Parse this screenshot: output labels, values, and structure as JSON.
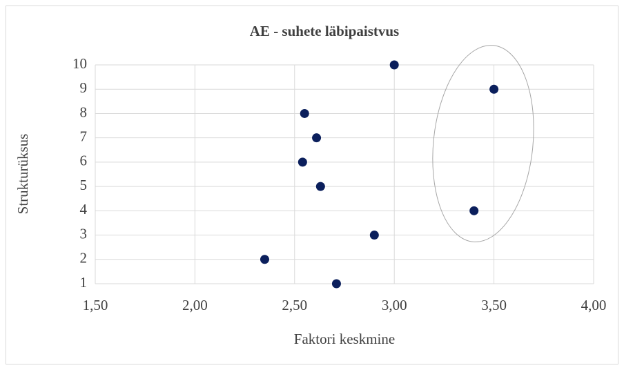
{
  "chart_data": {
    "type": "scatter",
    "title": "AE - suhete läbipaistvus",
    "xlabel": "Faktori keskmine",
    "ylabel": "Strukturüksus",
    "series": [
      {
        "color": "#0b1f5c",
        "x": [
          2.71,
          2.35,
          2.9,
          3.4,
          2.63,
          2.54,
          2.61,
          2.55,
          3.5,
          3.0
        ],
        "values": [
          1,
          2,
          3,
          4,
          5,
          6,
          7,
          8,
          9,
          10
        ]
      }
    ],
    "xlim": [
      1.5,
      4.0
    ],
    "xticks": [
      {
        "value": 1.5,
        "label": "1,50"
      },
      {
        "value": 2.0,
        "label": "2,00"
      },
      {
        "value": 2.5,
        "label": "2,50"
      },
      {
        "value": 3.0,
        "label": "3,00"
      },
      {
        "value": 3.5,
        "label": "3,50"
      },
      {
        "value": 4.0,
        "label": "4,00"
      }
    ],
    "ylim": [
      1,
      10
    ],
    "yticks": [
      1,
      2,
      3,
      4,
      5,
      6,
      7,
      8,
      9,
      10
    ],
    "grid": true
  }
}
